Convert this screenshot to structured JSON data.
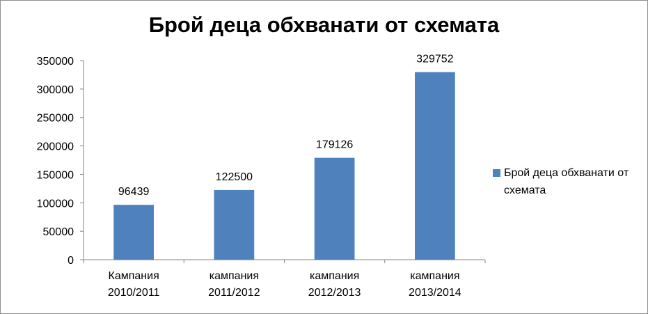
{
  "chart_data": {
    "type": "bar",
    "title": "Брой деца обхванати от схемата",
    "categories": [
      [
        "Кампания",
        "2010/2011"
      ],
      [
        "кампания",
        "2011/2012"
      ],
      [
        "кампания",
        "2012/2013"
      ],
      [
        "кампания",
        "2013/2014"
      ]
    ],
    "series": [
      {
        "name": "Брой деца обхванати от схемата",
        "values": [
          96439,
          122500,
          179126,
          329752
        ],
        "color": "#4f81bd"
      }
    ],
    "ylim": [
      0,
      350000
    ],
    "yticks": [
      0,
      50000,
      100000,
      150000,
      200000,
      250000,
      300000,
      350000
    ],
    "data_labels": true,
    "grid": false,
    "legend_position": "right"
  }
}
